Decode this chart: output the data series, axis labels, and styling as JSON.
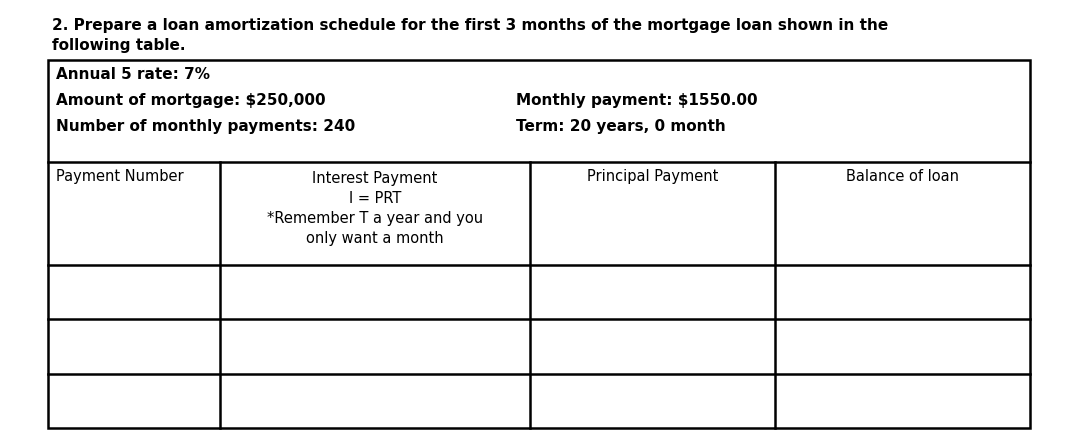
{
  "title_line1": "2. Prepare a loan amortization schedule for the first 3 months of the mortgage loan shown in the",
  "title_line2": "following table.",
  "annual_rate_label": "Annual 5 rate: 7%",
  "mortgage_amount_label": "Amount of mortgage: $250,000",
  "monthly_payments_label": "Number of monthly payments: 240",
  "monthly_payment_label": "Monthly payment: $1550.00",
  "term_label": "Term: 20 years, 0 month",
  "header_col0": "Payment Number",
  "header_col1_lines": [
    "Interest Payment",
    "I = PRT",
    "*Remember T a year and you",
    "only want a month"
  ],
  "header_col2": "Principal Payment",
  "header_col3": "Balance of loan",
  "num_data_rows": 3,
  "bg_color": "#ffffff",
  "text_color": "#000000",
  "font_size_title": 11.0,
  "font_size_info": 11.0,
  "font_size_header": 10.5
}
